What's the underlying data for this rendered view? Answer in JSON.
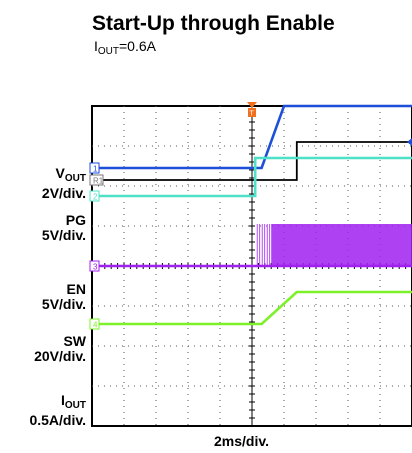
{
  "chart_data": {
    "type": "line",
    "title": "Start-Up through Enable",
    "subtitle": {
      "main": "I",
      "sub": "OUT",
      "rest": "=0.6A"
    },
    "xlabel": "2ms/div.",
    "grid": true,
    "divisions": {
      "x": 10,
      "y": 8
    },
    "channels": [
      {
        "name": "V",
        "sub": "OUT",
        "scale": "2V/div.",
        "marker": "1",
        "color": "#1e4fd8",
        "points": [
          [
            0,
            2.45
          ],
          [
            5.3,
            2.45
          ],
          [
            6.0,
            4.0
          ],
          [
            10,
            4.0
          ]
        ]
      },
      {
        "name": "PG",
        "sub": "",
        "scale": "5V/div.",
        "marker": "R1",
        "color": "#000000",
        "points": [
          [
            0,
            2.15
          ],
          [
            6.4,
            2.15
          ],
          [
            6.4,
            3.1
          ],
          [
            10,
            3.1
          ]
        ]
      },
      {
        "name": "EN",
        "sub": "",
        "scale": "5V/div.",
        "marker": "2",
        "color": "#4fe0c8",
        "points": [
          [
            0,
            1.75
          ],
          [
            5.1,
            1.75
          ],
          [
            5.1,
            2.7
          ],
          [
            10,
            2.7
          ]
        ]
      },
      {
        "name": "SW",
        "sub": "",
        "scale": "20V/div.",
        "marker": "3",
        "color": "#a020f0",
        "points": [
          [
            0,
            0.0
          ],
          [
            5.6,
            0.0
          ],
          [
            10,
            0.0
          ]
        ],
        "switching_start": 5.6,
        "switching_high": 1.05
      },
      {
        "name": "I",
        "sub": "OUT",
        "scale": "0.5A/div.",
        "marker": "4",
        "color": "#7cf028",
        "points": [
          [
            0,
            -1.45
          ],
          [
            5.3,
            -1.45
          ],
          [
            6.4,
            -0.65
          ],
          [
            10,
            -0.65
          ]
        ]
      }
    ],
    "trigger_marker": "T"
  }
}
